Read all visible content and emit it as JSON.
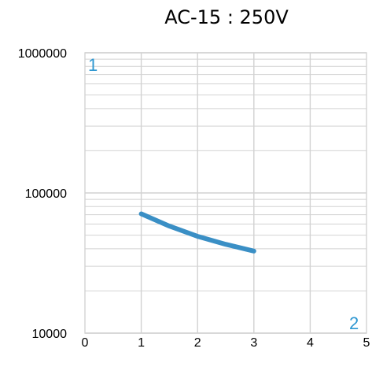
{
  "chart_data": {
    "type": "line",
    "title": "AC-15 : 250V",
    "xlabel": "",
    "ylabel": "",
    "x_ticks": [
      "0",
      "1",
      "2",
      "3",
      "4",
      "5"
    ],
    "y_ticks": [
      "10000",
      "100000",
      "1000000"
    ],
    "xlim": [
      0,
      5
    ],
    "ylim": [
      10000,
      1000000
    ],
    "y_scale": "log",
    "grid": true,
    "corner_labels": {
      "top_left": "1",
      "bottom_right": "2"
    },
    "series": [
      {
        "x": [
          1,
          1.5,
          2,
          2.5,
          3
        ],
        "y": [
          71000,
          58000,
          49000,
          43000,
          38500
        ]
      }
    ],
    "colors": {
      "series": "#3a8fc5",
      "grid": "#d2d2d2",
      "corner_labels": "#2e97d1"
    }
  }
}
